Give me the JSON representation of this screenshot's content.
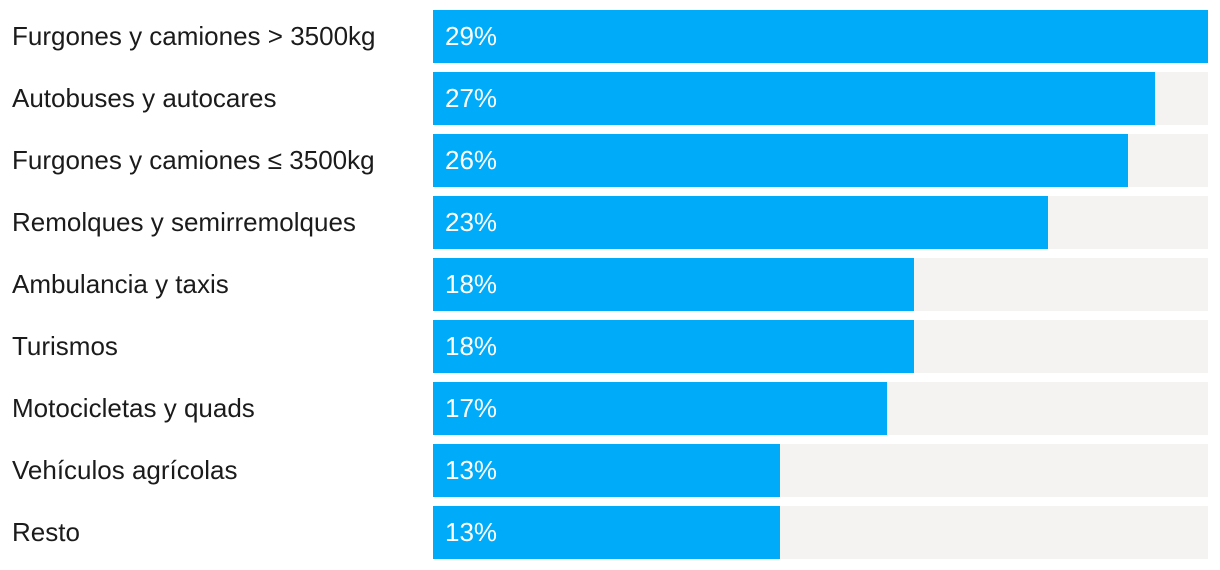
{
  "chart_data": {
    "type": "bar",
    "orientation": "horizontal",
    "title": "",
    "xlabel": "",
    "ylabel": "",
    "xlim": [
      0,
      29
    ],
    "grid": false,
    "legend": false,
    "categories": [
      "Furgones y camiones > 3500kg",
      "Autobuses y autocares",
      "Furgones y camiones ≤ 3500kg",
      "Remolques y semirremolques",
      "Ambulancia y taxis",
      "Turismos",
      "Motocicletas y quads",
      "Vehículos agrícolas",
      "Resto"
    ],
    "values": [
      29,
      27,
      26,
      23,
      18,
      18,
      17,
      13,
      13
    ],
    "value_labels": [
      "29%",
      "27%",
      "26%",
      "23%",
      "18%",
      "18%",
      "17%",
      "13%",
      "13%"
    ],
    "colors": {
      "bar": "#00acfa",
      "track": "#f4f3f2",
      "category_text": "#1b1b1b",
      "value_text": "#ffffff",
      "background": "#ffffff"
    }
  }
}
